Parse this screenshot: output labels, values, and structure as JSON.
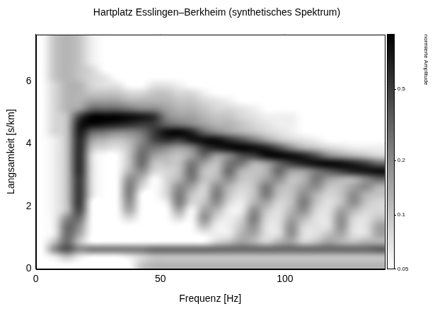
{
  "chart_data": {
    "type": "heatmap",
    "title": "Hartplatz Esslingen–Berkheim (synthetisches Spektrum)",
    "x_label": "Frequenz [Hz]",
    "y_label": "Langsamkeit [s/km]",
    "x": [
      2.5,
      7.5,
      12.5,
      17.5,
      22.5,
      27.5,
      32.5,
      37.5,
      42.5,
      47.5,
      52.5,
      57.5,
      62.5,
      67.5,
      72.5,
      77.5,
      82.5,
      87.5,
      92.5,
      97.5,
      102.5,
      107.5,
      112.5,
      117.5,
      122.5,
      127.5,
      132.5,
      137.5
    ],
    "y": [
      7.375,
      7.125,
      6.875,
      6.625,
      6.375,
      6.125,
      5.875,
      5.625,
      5.375,
      5.125,
      4.875,
      4.625,
      4.375,
      4.125,
      3.875,
      3.625,
      3.375,
      3.125,
      2.875,
      2.625,
      2.375,
      2.125,
      1.875,
      1.625,
      1.375,
      1.125,
      0.875,
      0.625,
      0.375,
      0.125
    ],
    "values": [
      [
        0.05,
        0.1,
        0.12,
        0.1,
        0.06,
        0.05,
        0.05,
        0.05,
        0.05,
        0.05,
        0.05,
        0.05,
        0.05,
        0.05,
        0.05,
        0.05,
        0.05,
        0.05,
        0.05,
        0.05,
        0.05,
        0.05,
        0.05,
        0.05,
        0.05,
        0.05,
        0.05,
        0.05
      ],
      [
        0.05,
        0.1,
        0.12,
        0.1,
        0.06,
        0.05,
        0.05,
        0.05,
        0.05,
        0.05,
        0.05,
        0.05,
        0.05,
        0.05,
        0.05,
        0.05,
        0.05,
        0.05,
        0.05,
        0.05,
        0.05,
        0.05,
        0.05,
        0.05,
        0.05,
        0.05,
        0.05,
        0.05
      ],
      [
        0.05,
        0.1,
        0.12,
        0.1,
        0.06,
        0.05,
        0.05,
        0.05,
        0.05,
        0.05,
        0.05,
        0.05,
        0.05,
        0.05,
        0.05,
        0.05,
        0.05,
        0.05,
        0.05,
        0.05,
        0.05,
        0.05,
        0.05,
        0.05,
        0.05,
        0.05,
        0.05,
        0.05
      ],
      [
        0.05,
        0.1,
        0.12,
        0.1,
        0.06,
        0.05,
        0.05,
        0.05,
        0.05,
        0.05,
        0.05,
        0.05,
        0.05,
        0.05,
        0.05,
        0.05,
        0.05,
        0.05,
        0.05,
        0.05,
        0.05,
        0.05,
        0.05,
        0.05,
        0.05,
        0.05,
        0.05,
        0.05
      ],
      [
        0.05,
        0.1,
        0.12,
        0.1,
        0.08,
        0.05,
        0.05,
        0.05,
        0.05,
        0.05,
        0.05,
        0.05,
        0.05,
        0.05,
        0.05,
        0.05,
        0.05,
        0.05,
        0.05,
        0.05,
        0.05,
        0.05,
        0.05,
        0.05,
        0.05,
        0.05,
        0.05,
        0.05
      ],
      [
        0.05,
        0.1,
        0.12,
        0.1,
        0.08,
        0.07,
        0.05,
        0.05,
        0.05,
        0.05,
        0.05,
        0.05,
        0.05,
        0.05,
        0.05,
        0.05,
        0.05,
        0.05,
        0.05,
        0.05,
        0.05,
        0.05,
        0.05,
        0.05,
        0.05,
        0.05,
        0.05,
        0.05
      ],
      [
        0.05,
        0.08,
        0.12,
        0.12,
        0.08,
        0.07,
        0.07,
        0.05,
        0.05,
        0.07,
        0.07,
        0.06,
        0.05,
        0.05,
        0.05,
        0.05,
        0.05,
        0.05,
        0.05,
        0.05,
        0.05,
        0.05,
        0.05,
        0.05,
        0.05,
        0.05,
        0.05,
        0.05
      ],
      [
        0.05,
        0.08,
        0.12,
        0.12,
        0.1,
        0.1,
        0.1,
        0.08,
        0.08,
        0.1,
        0.1,
        0.08,
        0.08,
        0.06,
        0.05,
        0.05,
        0.05,
        0.05,
        0.05,
        0.05,
        0.05,
        0.05,
        0.05,
        0.05,
        0.05,
        0.05,
        0.05,
        0.05
      ],
      [
        0.05,
        0.08,
        0.12,
        0.12,
        0.15,
        0.15,
        0.15,
        0.12,
        0.12,
        0.12,
        0.12,
        0.1,
        0.1,
        0.08,
        0.07,
        0.06,
        0.05,
        0.05,
        0.05,
        0.05,
        0.05,
        0.05,
        0.05,
        0.05,
        0.05,
        0.05,
        0.05,
        0.05
      ],
      [
        0.05,
        0.08,
        0.12,
        0.15,
        0.3,
        0.3,
        0.3,
        0.25,
        0.2,
        0.2,
        0.15,
        0.12,
        0.12,
        0.1,
        0.08,
        0.08,
        0.07,
        0.06,
        0.05,
        0.05,
        0.05,
        0.05,
        0.05,
        0.05,
        0.05,
        0.05,
        0.05,
        0.05
      ],
      [
        0.05,
        0.08,
        0.1,
        0.5,
        1,
        1,
        1,
        0.9,
        0.8,
        0.6,
        0.2,
        0.15,
        0.15,
        0.12,
        0.1,
        0.1,
        0.08,
        0.07,
        0.06,
        0.06,
        0.06,
        0.05,
        0.05,
        0.05,
        0.05,
        0.05,
        0.05,
        0.05
      ],
      [
        0.05,
        0.08,
        0.1,
        0.8,
        0.9,
        0.8,
        0.7,
        0.6,
        0.5,
        0.5,
        0.3,
        0.25,
        0.2,
        0.15,
        0.12,
        0.12,
        0.1,
        0.08,
        0.07,
        0.06,
        0.06,
        0.05,
        0.05,
        0.05,
        0.05,
        0.05,
        0.05,
        0.05
      ],
      [
        0.05,
        0.08,
        0.1,
        0.8,
        0.3,
        0.25,
        0.2,
        0.2,
        0.25,
        0.5,
        0.9,
        1,
        0.7,
        0.3,
        0.2,
        0.15,
        0.12,
        0.1,
        0.08,
        0.07,
        0.06,
        0.05,
        0.05,
        0.05,
        0.05,
        0.05,
        0.05,
        0.05
      ],
      [
        0.05,
        0.06,
        0.1,
        0.7,
        0.15,
        0.12,
        0.1,
        0.12,
        0.2,
        0.45,
        0.6,
        0.5,
        0.8,
        0.9,
        0.9,
        0.6,
        0.4,
        0.25,
        0.15,
        0.1,
        0.08,
        0.07,
        0.06,
        0.05,
        0.05,
        0.05,
        0.05,
        0.05
      ],
      [
        0.05,
        0.06,
        0.1,
        0.7,
        0.1,
        0.08,
        0.07,
        0.1,
        0.25,
        0.25,
        0.2,
        0.15,
        0.2,
        0.5,
        0.7,
        0.9,
        1,
        0.9,
        0.7,
        0.4,
        0.2,
        0.12,
        0.1,
        0.08,
        0.07,
        0.06,
        0.06,
        0.06
      ],
      [
        0.05,
        0.06,
        0.1,
        0.7,
        0.07,
        0.05,
        0.05,
        0.1,
        0.3,
        0.15,
        0.12,
        0.1,
        0.15,
        0.3,
        0.15,
        0.2,
        0.4,
        0.5,
        0.9,
        1,
        0.9,
        0.7,
        0.4,
        0.2,
        0.15,
        0.12,
        0.1,
        0.08
      ],
      [
        0.05,
        0.06,
        0.1,
        0.7,
        0.07,
        0.05,
        0.05,
        0.1,
        0.3,
        0.1,
        0.1,
        0.1,
        0.25,
        0.15,
        0.1,
        0.25,
        0.25,
        0.12,
        0.15,
        0.3,
        0.5,
        0.7,
        0.9,
        1,
        0.9,
        0.7,
        0.5,
        0.3
      ],
      [
        0.05,
        0.06,
        0.1,
        0.7,
        0.07,
        0.05,
        0.05,
        0.12,
        0.2,
        0.08,
        0.08,
        0.1,
        0.3,
        0.1,
        0.1,
        0.3,
        0.12,
        0.1,
        0.12,
        0.3,
        0.15,
        0.15,
        0.25,
        0.35,
        0.5,
        0.7,
        0.8,
        0.9
      ],
      [
        0.05,
        0.06,
        0.1,
        0.6,
        0.07,
        0.05,
        0.05,
        0.2,
        0.12,
        0.05,
        0.08,
        0.12,
        0.25,
        0.1,
        0.12,
        0.2,
        0.1,
        0.1,
        0.15,
        0.2,
        0.1,
        0.12,
        0.25,
        0.15,
        0.12,
        0.12,
        0.2,
        0.3
      ],
      [
        0.05,
        0.06,
        0.1,
        0.6,
        0.07,
        0.05,
        0.05,
        0.25,
        0.08,
        0.05,
        0.08,
        0.2,
        0.15,
        0.08,
        0.2,
        0.12,
        0.08,
        0.1,
        0.25,
        0.12,
        0.1,
        0.15,
        0.2,
        0.1,
        0.1,
        0.15,
        0.2,
        0.12
      ],
      [
        0.05,
        0.06,
        0.1,
        0.6,
        0.07,
        0.05,
        0.05,
        0.25,
        0.05,
        0.05,
        0.08,
        0.25,
        0.1,
        0.08,
        0.25,
        0.1,
        0.07,
        0.1,
        0.25,
        0.1,
        0.1,
        0.2,
        0.12,
        0.08,
        0.1,
        0.2,
        0.12,
        0.1
      ],
      [
        0.05,
        0.06,
        0.1,
        0.6,
        0.05,
        0.05,
        0.05,
        0.2,
        0.05,
        0.05,
        0.06,
        0.25,
        0.08,
        0.1,
        0.2,
        0.08,
        0.06,
        0.12,
        0.15,
        0.08,
        0.1,
        0.25,
        0.1,
        0.07,
        0.1,
        0.2,
        0.1,
        0.08
      ],
      [
        0.05,
        0.06,
        0.1,
        0.5,
        0.05,
        0.05,
        0.05,
        0.15,
        0.05,
        0.05,
        0.05,
        0.15,
        0.05,
        0.15,
        0.12,
        0.06,
        0.06,
        0.2,
        0.1,
        0.07,
        0.12,
        0.2,
        0.08,
        0.07,
        0.15,
        0.12,
        0.08,
        0.08
      ],
      [
        0.05,
        0.06,
        0.2,
        0.3,
        0.05,
        0.05,
        0.05,
        0.08,
        0.05,
        0.05,
        0.05,
        0.08,
        0.05,
        0.2,
        0.08,
        0.06,
        0.08,
        0.25,
        0.08,
        0.07,
        0.15,
        0.12,
        0.07,
        0.07,
        0.2,
        0.08,
        0.07,
        0.1
      ],
      [
        0.05,
        0.06,
        0.3,
        0.2,
        0.05,
        0.05,
        0.05,
        0.05,
        0.05,
        0.05,
        0.05,
        0.05,
        0.05,
        0.12,
        0.06,
        0.06,
        0.1,
        0.2,
        0.07,
        0.07,
        0.2,
        0.08,
        0.07,
        0.07,
        0.2,
        0.07,
        0.07,
        0.15
      ],
      [
        0.05,
        0.06,
        0.3,
        0.15,
        0.05,
        0.05,
        0.05,
        0.05,
        0.05,
        0.05,
        0.05,
        0.05,
        0.05,
        0.06,
        0.06,
        0.06,
        0.12,
        0.15,
        0.07,
        0.07,
        0.2,
        0.07,
        0.07,
        0.1,
        0.15,
        0.07,
        0.07,
        0.15
      ],
      [
        0.05,
        0.1,
        0.3,
        0.1,
        0.05,
        0.05,
        0.05,
        0.05,
        0.05,
        0.05,
        0.05,
        0.05,
        0.05,
        0.05,
        0.08,
        0.1,
        0.15,
        0.12,
        0.08,
        0.12,
        0.15,
        0.08,
        0.1,
        0.15,
        0.12,
        0.1,
        0.12,
        0.12
      ],
      [
        0.05,
        0.2,
        0.4,
        0.2,
        0.25,
        0.25,
        0.25,
        0.25,
        0.25,
        0.3,
        0.3,
        0.3,
        0.3,
        0.3,
        0.3,
        0.3,
        0.3,
        0.3,
        0.3,
        0.3,
        0.3,
        0.3,
        0.3,
        0.3,
        0.3,
        0.3,
        0.3,
        0.35
      ],
      [
        0.05,
        0.06,
        0.1,
        0.06,
        0.05,
        0.05,
        0.05,
        0.06,
        0.08,
        0.1,
        0.1,
        0.1,
        0.1,
        0.1,
        0.1,
        0.1,
        0.1,
        0.1,
        0.1,
        0.1,
        0.1,
        0.1,
        0.1,
        0.1,
        0.1,
        0.1,
        0.1,
        0.1
      ],
      [
        0.05,
        0.05,
        0.05,
        0.05,
        0.05,
        0.05,
        0.05,
        0.05,
        0.1,
        0.12,
        0.12,
        0.12,
        0.12,
        0.12,
        0.12,
        0.12,
        0.12,
        0.12,
        0.12,
        0.12,
        0.12,
        0.12,
        0.12,
        0.12,
        0.12,
        0.12,
        0.12,
        0.12
      ]
    ],
    "color": "#000000",
    "xlim": [
      0,
      140
    ],
    "xticks": [
      0,
      50,
      100
    ],
    "ylim": [
      0,
      7.5
    ],
    "yticks": [
      0,
      2,
      4,
      6
    ],
    "grid": true,
    "colorbar": {
      "label": "normierte Amplitude",
      "range": [
        0.05,
        1
      ],
      "ticks": [
        0.05,
        0.1,
        0.2,
        0.5
      ],
      "log": true
    }
  }
}
